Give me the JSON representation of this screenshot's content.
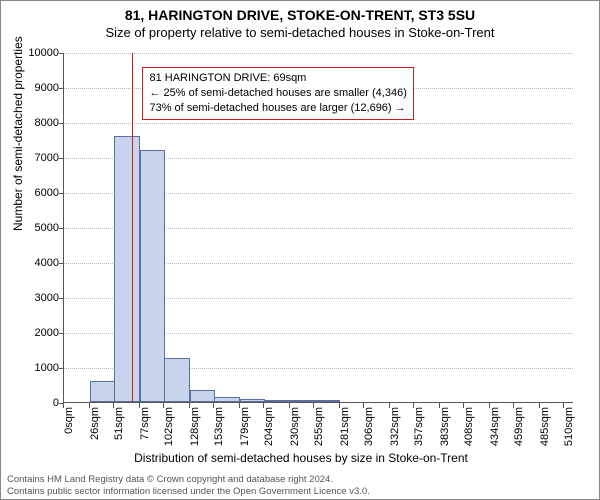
{
  "title": "81, HARINGTON DRIVE, STOKE-ON-TRENT, ST3 5SU",
  "subtitle": "Size of property relative to semi-detached houses in Stoke-on-Trent",
  "chart": {
    "type": "histogram",
    "ylabel": "Number of semi-detached properties",
    "xlabel": "Distribution of semi-detached houses by size in Stoke-on-Trent",
    "ylim": [
      0,
      10000
    ],
    "ytick_step": 1000,
    "yticks": [
      0,
      1000,
      2000,
      3000,
      4000,
      5000,
      6000,
      7000,
      8000,
      9000,
      10000
    ],
    "xlim": [
      0,
      520
    ],
    "xticks": [
      0,
      26,
      51,
      77,
      102,
      128,
      153,
      179,
      204,
      230,
      255,
      281,
      306,
      332,
      357,
      383,
      408,
      434,
      459,
      485,
      510
    ],
    "xtick_labels": [
      "0sqm",
      "26sqm",
      "51sqm",
      "77sqm",
      "102sqm",
      "128sqm",
      "153sqm",
      "179sqm",
      "204sqm",
      "230sqm",
      "255sqm",
      "281sqm",
      "306sqm",
      "332sqm",
      "357sqm",
      "383sqm",
      "408sqm",
      "434sqm",
      "459sqm",
      "485sqm",
      "510sqm"
    ],
    "bar_color": "#c8d3ec",
    "bar_border_color": "#5a6fa0",
    "grid_color": "#bbbbbb",
    "axis_color": "#555555",
    "background_color": "#ffffff",
    "bin_width": 26,
    "bins": [
      {
        "x": 0,
        "count": 0
      },
      {
        "x": 26,
        "count": 600
      },
      {
        "x": 51,
        "count": 7600
      },
      {
        "x": 77,
        "count": 7200
      },
      {
        "x": 102,
        "count": 1250
      },
      {
        "x": 128,
        "count": 350
      },
      {
        "x": 153,
        "count": 150
      },
      {
        "x": 179,
        "count": 80
      },
      {
        "x": 204,
        "count": 60
      },
      {
        "x": 230,
        "count": 20
      },
      {
        "x": 255,
        "count": 10
      }
    ],
    "marker": {
      "x": 69,
      "color": "#c81e1e"
    },
    "annotation": {
      "lines": [
        "81 HARINGTON DRIVE: 69sqm",
        "← 25% of semi-detached houses are smaller (4,346)",
        "73% of semi-detached houses are larger (12,696) →"
      ],
      "border_color": "#c81e1e",
      "x": 80,
      "y_value": 9600
    }
  },
  "footer": {
    "line1": "Contains HM Land Registry data © Crown copyright and database right 2024.",
    "line2": "Contains public sector information licensed under the Open Government Licence v3.0."
  },
  "fonts": {
    "title_size": 14,
    "subtitle_size": 13,
    "label_size": 12,
    "tick_size": 11,
    "annotation_size": 11,
    "footer_size": 9.5
  }
}
